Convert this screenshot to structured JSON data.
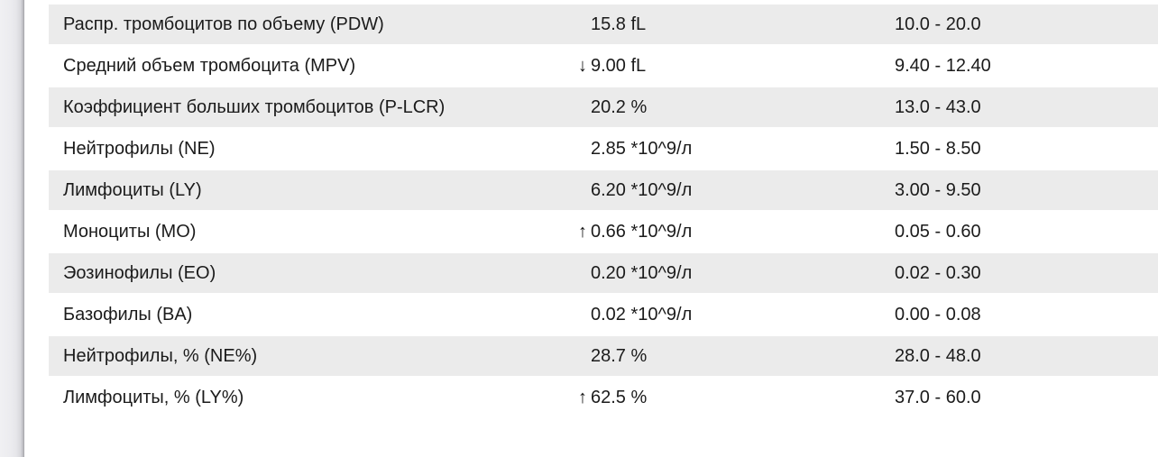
{
  "colors": {
    "row_shade": "#ebebeb",
    "page_background": "#ffffff",
    "text": "#1b1b1b",
    "page_edge_line": "#a9a9ae"
  },
  "table": {
    "rows": [
      {
        "name": "Распр. тромбоцитов по объему (PDW)",
        "flag": "",
        "value": "15.8 fL",
        "range": "10.0 - 20.0",
        "shaded": true
      },
      {
        "name": "Средний объем тромбоцита (MPV)",
        "flag": "↓",
        "value": "9.00 fL",
        "range": "9.40 - 12.40",
        "shaded": false
      },
      {
        "name": "Коэффициент больших тромбоцитов (P-LCR)",
        "flag": "",
        "value": "20.2 %",
        "range": "13.0 - 43.0",
        "shaded": true
      },
      {
        "name": "Нейтрофилы (NE)",
        "flag": "",
        "value": "2.85 *10^9/л",
        "range": "1.50 - 8.50",
        "shaded": false
      },
      {
        "name": "Лимфоциты (LY)",
        "flag": "",
        "value": "6.20 *10^9/л",
        "range": "3.00 - 9.50",
        "shaded": true
      },
      {
        "name": "Моноциты (MO)",
        "flag": "↑",
        "value": "0.66 *10^9/л",
        "range": "0.05 - 0.60",
        "shaded": false
      },
      {
        "name": "Эозинофилы (EO)",
        "flag": "",
        "value": "0.20 *10^9/л",
        "range": "0.02 - 0.30",
        "shaded": true
      },
      {
        "name": "Базофилы (BA)",
        "flag": "",
        "value": "0.02 *10^9/л",
        "range": "0.00 - 0.08",
        "shaded": false
      },
      {
        "name": "Нейтрофилы, % (NE%)",
        "flag": "",
        "value": "28.7 %",
        "range": "28.0 - 48.0",
        "shaded": true
      },
      {
        "name": "Лимфоциты, % (LY%)",
        "flag": "↑",
        "value": "62.5 %",
        "range": "37.0 - 60.0",
        "shaded": false
      }
    ]
  }
}
